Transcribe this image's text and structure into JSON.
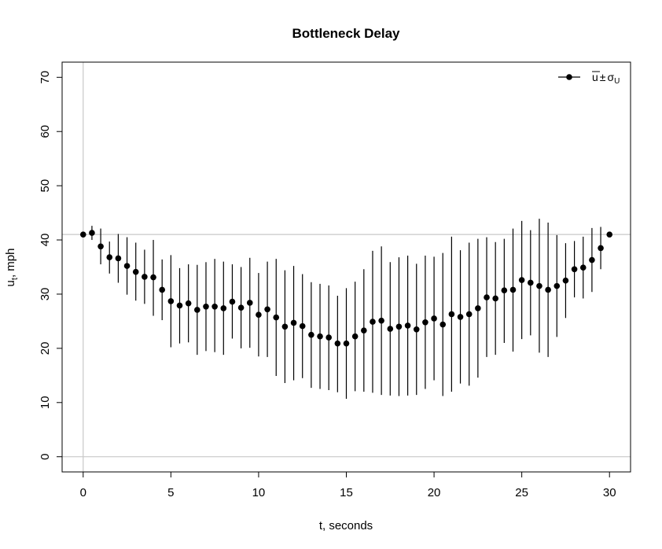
{
  "chart_data": {
    "type": "scatter",
    "title": "Bottleneck Delay",
    "xlabel": "t, seconds",
    "ylabel_main": "u",
    "ylabel_sub": "t",
    "ylabel_rest": ", mph",
    "xlim": [
      -1.2,
      31.2
    ],
    "ylim": [
      -2.8,
      72.8
    ],
    "xticks": [
      0,
      5,
      10,
      15,
      20,
      25,
      30
    ],
    "yticks": [
      0,
      10,
      20,
      30,
      40,
      50,
      60,
      70
    ],
    "reference_lines": {
      "h": [
        0,
        41
      ],
      "v": [
        0
      ]
    },
    "legend": {
      "position": "top-right",
      "symbol": "u",
      "pm": "±",
      "sigma": "σ",
      "sigma_sub": "U"
    },
    "series": [
      {
        "x": [
          0,
          0.5,
          1,
          1.5,
          2,
          2.5,
          3,
          3.5,
          4,
          4.5,
          5,
          5.5,
          6,
          6.5,
          7,
          7.5,
          8,
          8.5,
          9,
          9.5,
          10,
          10.5,
          11,
          11.5,
          12,
          12.5,
          13,
          13.5,
          14,
          14.5,
          15,
          15.5,
          16,
          16.5,
          17,
          17.5,
          18,
          18.5,
          19,
          19.5,
          20,
          20.5,
          21,
          21.5,
          22,
          22.5,
          23,
          23.5,
          24,
          24.5,
          25,
          25.5,
          26,
          26.5,
          27,
          27.5,
          28,
          28.5,
          29,
          29.5,
          30
        ],
        "y": [
          41.0,
          41.3,
          38.8,
          36.8,
          36.6,
          35.2,
          34.1,
          33.2,
          33.1,
          30.8,
          28.7,
          27.9,
          28.3,
          27.1,
          27.7,
          27.7,
          27.4,
          28.6,
          27.5,
          28.4,
          26.2,
          27.2,
          25.7,
          24.0,
          24.7,
          24.1,
          22.5,
          22.2,
          22.0,
          20.9,
          20.9,
          22.2,
          23.3,
          24.9,
          25.1,
          23.6,
          24.0,
          24.2,
          23.5,
          24.8,
          25.5,
          24.4,
          26.3,
          25.8,
          26.3,
          27.4,
          29.4,
          29.2,
          30.7,
          30.8,
          32.6,
          32.1,
          31.5,
          30.8,
          31.5,
          32.5,
          34.6,
          34.9,
          36.3,
          38.5,
          41.0
        ],
        "lower": [
          41.0,
          40.0,
          35.5,
          33.8,
          32.1,
          29.9,
          28.8,
          28.2,
          26.0,
          25.2,
          20.2,
          20.9,
          21.1,
          18.8,
          19.5,
          19.3,
          18.8,
          21.8,
          20.0,
          20.1,
          18.5,
          18.4,
          14.9,
          13.6,
          14.1,
          14.5,
          12.7,
          12.5,
          12.3,
          11.9,
          10.7,
          12.1,
          12.0,
          11.8,
          11.4,
          11.3,
          11.2,
          11.3,
          11.4,
          12.5,
          14.1,
          11.2,
          12.0,
          13.5,
          13.1,
          14.6,
          18.4,
          18.8,
          21.0,
          19.4,
          21.7,
          22.4,
          19.2,
          18.4,
          22.1,
          25.6,
          29.4,
          29.2,
          30.4,
          34.6,
          41.0
        ],
        "upper": [
          41.0,
          42.6,
          42.1,
          39.7,
          41.1,
          40.5,
          39.5,
          38.2,
          40.0,
          36.4,
          37.2,
          34.8,
          35.5,
          35.4,
          35.9,
          36.5,
          36.0,
          35.5,
          35.0,
          36.7,
          33.9,
          36.0,
          36.5,
          34.4,
          35.2,
          33.7,
          32.2,
          31.9,
          31.6,
          29.7,
          31.1,
          32.3,
          34.6,
          38.0,
          38.8,
          35.9,
          36.8,
          37.1,
          35.6,
          37.1,
          36.9,
          37.6,
          40.6,
          38.1,
          39.5,
          40.2,
          40.5,
          39.6,
          40.2,
          42.1,
          43.5,
          41.8,
          43.9,
          43.2,
          40.9,
          39.4,
          39.8,
          40.6,
          42.2,
          42.4,
          41.0
        ]
      }
    ]
  }
}
